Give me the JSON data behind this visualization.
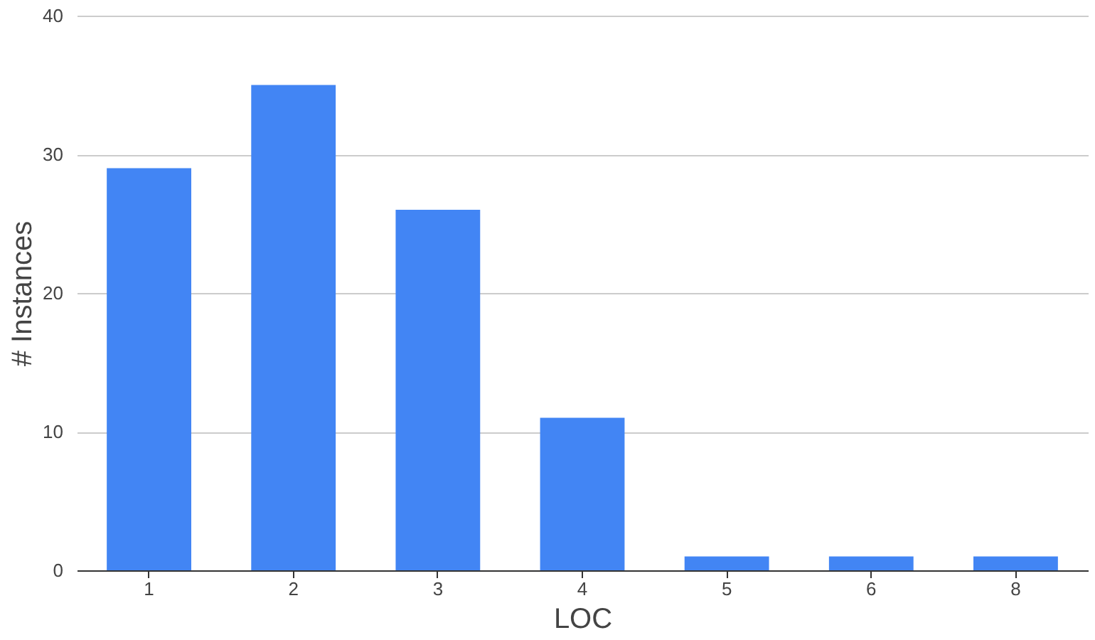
{
  "chart_data": {
    "type": "bar",
    "xlabel": "LOC",
    "ylabel": "# Instances",
    "categories": [
      "1",
      "2",
      "3",
      "4",
      "5",
      "6",
      "8"
    ],
    "values": [
      29,
      35,
      26,
      11,
      1,
      1,
      1
    ],
    "color": "#4285f4",
    "ylim": [
      0,
      40
    ],
    "yticks": [
      0,
      10,
      20,
      30,
      40
    ],
    "grid": "y"
  }
}
